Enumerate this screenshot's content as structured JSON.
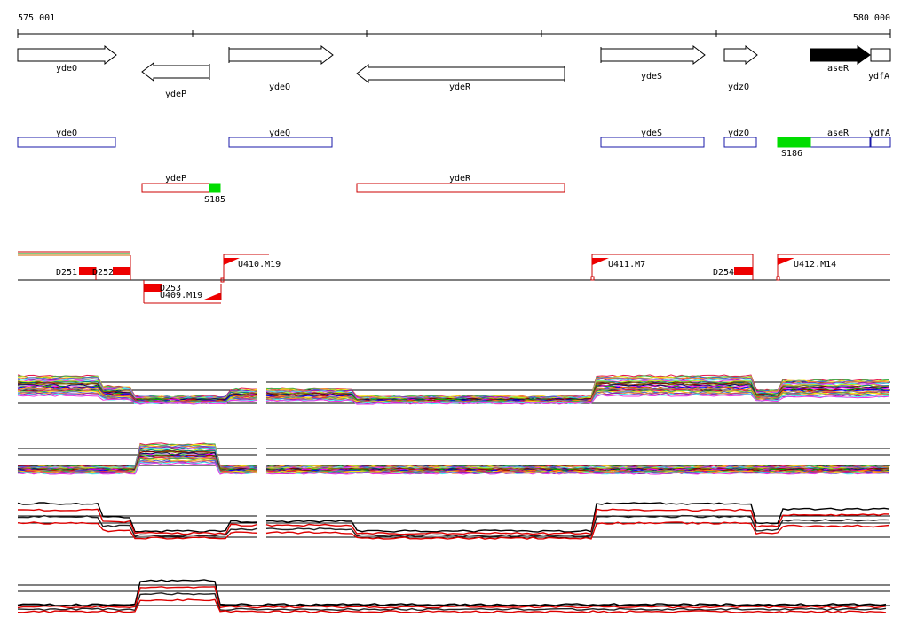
{
  "ruler": {
    "start_label": "575 001",
    "end_label": "580 000"
  },
  "colors": {
    "gene_outline": "#000000",
    "gene_highlight": "#000000",
    "box_forward": "#1a1aa8",
    "box_reverse": "#cc0000",
    "green_marker": "#00dd00",
    "red_marker": "#ee0000",
    "signal_red": "#dd0000",
    "signal_black": "#000000"
  },
  "genes": [
    {
      "name": "ydeO",
      "strand": "+",
      "style": "outline"
    },
    {
      "name": "ydeP",
      "strand": "-",
      "style": "outline"
    },
    {
      "name": "ydeQ",
      "strand": "+",
      "style": "outline"
    },
    {
      "name": "ydeR",
      "strand": "-",
      "style": "outline"
    },
    {
      "name": "ydeS",
      "strand": "+",
      "style": "outline"
    },
    {
      "name": "ydzO",
      "strand": "+",
      "style": "outline"
    },
    {
      "name": "aseR",
      "strand": "+",
      "style": "filled"
    },
    {
      "name": "ydfA",
      "strand": "+",
      "style": "box"
    }
  ],
  "forward_boxes": [
    "ydeO",
    "ydeQ",
    "ydeS",
    "ydzO",
    "aseR",
    "ydfA"
  ],
  "reverse_boxes": [
    "ydeP",
    "ydeR"
  ],
  "green_markers": [
    "S185",
    "S186"
  ],
  "regions": [
    "D251",
    "D252",
    "D253",
    "D254"
  ],
  "upstream_sites": [
    "U409.M19",
    "U410.M19",
    "U411.M7",
    "U412.M14"
  ]
}
